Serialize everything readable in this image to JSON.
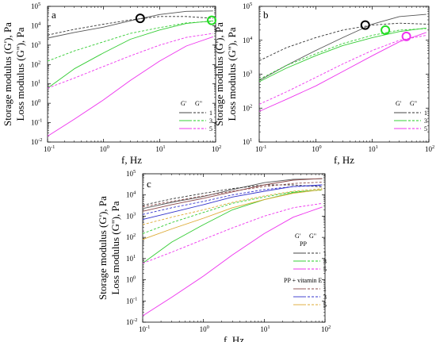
{
  "chart_data": [
    {
      "type": "line",
      "panel": "a",
      "xlabel": "f, Hz",
      "ylabel_lines": [
        "Storage modulus (G'), Pa",
        "Loss modulus (G''), Pa"
      ],
      "x_scale": "log",
      "y_scale": "log",
      "xlim": [
        0.1,
        100
      ],
      "ylim": [
        0.01,
        100000
      ],
      "x_ticks": [
        {
          "v": 0.1,
          "label": "10",
          "exp": "-1"
        },
        {
          "v": 1,
          "label": "10",
          "exp": "0"
        },
        {
          "v": 10,
          "label": "10",
          "exp": "1"
        },
        {
          "v": 100,
          "label": "10",
          "exp": "2"
        }
      ],
      "y_ticks": [
        {
          "v": 0.01,
          "label": "10",
          "exp": "-2"
        },
        {
          "v": 0.1,
          "label": "10",
          "exp": "-1"
        },
        {
          "v": 1,
          "label": "10",
          "exp": "0"
        },
        {
          "v": 10,
          "label": "10",
          "exp": "1"
        },
        {
          "v": 100,
          "label": "10",
          "exp": "2"
        },
        {
          "v": 1000,
          "label": "10",
          "exp": "3"
        },
        {
          "v": 10000,
          "label": "10",
          "exp": "4"
        },
        {
          "v": 100000,
          "label": "10",
          "exp": "5"
        }
      ],
      "legend": {
        "header": [
          "G'",
          "G\""
        ],
        "rows": [
          {
            "label": "1",
            "color": "#333333"
          },
          {
            "label": "3",
            "color": "#22cc22"
          },
          {
            "label": "5",
            "color": "#ee22ee"
          }
        ]
      },
      "series": [
        {
          "color": "#555555",
          "dash": false,
          "x": [
            0.1,
            0.3,
            1,
            3,
            10,
            30,
            90
          ],
          "y": [
            2300,
            4500,
            8500,
            18000,
            38000,
            55000,
            58000
          ]
        },
        {
          "color": "#333333",
          "dash": true,
          "x": [
            0.1,
            0.3,
            1,
            3,
            10,
            30,
            90
          ],
          "y": [
            3300,
            6500,
            12000,
            20000,
            30000,
            30000,
            24000
          ]
        },
        {
          "color": "#33cc33",
          "dash": false,
          "x": [
            0.1,
            0.3,
            1,
            3,
            10,
            30,
            90
          ],
          "y": [
            6,
            60,
            400,
            2000,
            6000,
            13000,
            18000
          ]
        },
        {
          "color": "#33cc33",
          "dash": true,
          "x": [
            0.1,
            0.3,
            1,
            3,
            10,
            30,
            90
          ],
          "y": [
            150,
            500,
            1500,
            4000,
            8000,
            14000,
            17000
          ]
        },
        {
          "color": "#ee33ee",
          "dash": false,
          "x": [
            0.1,
            0.3,
            1,
            3,
            10,
            30,
            90
          ],
          "y": [
            0.02,
            0.15,
            1.5,
            15,
            150,
            900,
            2700
          ]
        },
        {
          "color": "#ee33ee",
          "dash": true,
          "x": [
            0.1,
            0.3,
            1,
            3,
            10,
            30,
            90
          ],
          "y": [
            6,
            20,
            80,
            280,
            1000,
            2500,
            4000
          ]
        }
      ],
      "markers": [
        {
          "x": 4.5,
          "y": 24000,
          "color": "#000000"
        },
        {
          "x": 85,
          "y": 19000,
          "color": "#22dd22"
        }
      ]
    },
    {
      "type": "line",
      "panel": "b",
      "xlabel": "f, Hz",
      "ylabel_lines": [
        "Storage modulus (G'), Pa",
        "Loss modulus (G''), Pa"
      ],
      "x_scale": "log",
      "y_scale": "log",
      "xlim": [
        0.1,
        100
      ],
      "ylim": [
        10,
        100000
      ],
      "x_ticks": [
        {
          "v": 0.1,
          "label": "10",
          "exp": "-1"
        },
        {
          "v": 1,
          "label": "10",
          "exp": "0"
        },
        {
          "v": 10,
          "label": "10",
          "exp": "1"
        },
        {
          "v": 100,
          "label": "10",
          "exp": "2"
        }
      ],
      "y_ticks": [
        {
          "v": 10,
          "label": "10",
          "exp": "1"
        },
        {
          "v": 100,
          "label": "10",
          "exp": "2"
        },
        {
          "v": 1000,
          "label": "10",
          "exp": "3"
        },
        {
          "v": 10000,
          "label": "10",
          "exp": "4"
        },
        {
          "v": 100000,
          "label": "10",
          "exp": "5"
        }
      ],
      "legend": {
        "header": [
          "G'",
          "G\""
        ],
        "rows": [
          {
            "label": "1",
            "color": "#333333"
          },
          {
            "label": "3",
            "color": "#22cc22"
          },
          {
            "label": "5",
            "color": "#ee22ee"
          }
        ]
      },
      "series": [
        {
          "color": "#555555",
          "dash": false,
          "x": [
            0.1,
            0.3,
            1,
            3,
            10,
            30,
            90
          ],
          "y": [
            650,
            1800,
            5000,
            12000,
            30000,
            50000,
            58000
          ]
        },
        {
          "color": "#333333",
          "dash": true,
          "x": [
            0.1,
            0.3,
            1,
            3,
            10,
            30,
            90
          ],
          "y": [
            2500,
            6000,
            12000,
            20000,
            28000,
            32000,
            30000
          ]
        },
        {
          "color": "#33cc33",
          "dash": false,
          "x": [
            0.1,
            0.3,
            1,
            3,
            10,
            30,
            90
          ],
          "y": [
            600,
            1500,
            3500,
            7000,
            12000,
            18000,
            23000
          ]
        },
        {
          "color": "#33cc33",
          "dash": true,
          "x": [
            0.1,
            0.3,
            1,
            3,
            10,
            30,
            90
          ],
          "y": [
            700,
            1800,
            4000,
            8000,
            14000,
            20000,
            22000
          ]
        },
        {
          "color": "#ee33ee",
          "dash": false,
          "x": [
            0.1,
            0.3,
            1,
            3,
            10,
            30,
            90
          ],
          "y": [
            80,
            180,
            450,
            1200,
            3500,
            9000,
            17000
          ]
        },
        {
          "color": "#ee33ee",
          "dash": true,
          "x": [
            0.1,
            0.3,
            1,
            3,
            10,
            30,
            90
          ],
          "y": [
            130,
            300,
            800,
            2000,
            5000,
            10000,
            14000
          ]
        }
      ],
      "markers": [
        {
          "x": 7.5,
          "y": 28000,
          "color": "#000000"
        },
        {
          "x": 17,
          "y": 20000,
          "color": "#22dd22"
        },
        {
          "x": 40,
          "y": 13000,
          "color": "#ee33ee"
        }
      ]
    },
    {
      "type": "line",
      "panel": "c",
      "xlabel": "f, Hz",
      "ylabel_lines": [
        "Storage modulus (G'), Pa",
        "Loss modulus (G''), Pa"
      ],
      "x_scale": "log",
      "y_scale": "log",
      "xlim": [
        0.1,
        100
      ],
      "ylim": [
        0.01,
        100000
      ],
      "x_ticks": [
        {
          "v": 0.1,
          "label": "10",
          "exp": "-1"
        },
        {
          "v": 1,
          "label": "10",
          "exp": "0"
        },
        {
          "v": 10,
          "label": "10",
          "exp": "1"
        },
        {
          "v": 100,
          "label": "10",
          "exp": "2"
        }
      ],
      "y_ticks": [
        {
          "v": 0.01,
          "label": "10",
          "exp": "-2"
        },
        {
          "v": 0.1,
          "label": "10",
          "exp": "-1"
        },
        {
          "v": 1,
          "label": "10",
          "exp": "0"
        },
        {
          "v": 10,
          "label": "10",
          "exp": "1"
        },
        {
          "v": 100,
          "label": "10",
          "exp": "2"
        },
        {
          "v": 1000,
          "label": "10",
          "exp": "3"
        },
        {
          "v": 10000,
          "label": "10",
          "exp": "4"
        },
        {
          "v": 100000,
          "label": "10",
          "exp": "5"
        }
      ],
      "legend": {
        "header": [
          "G'",
          "G\""
        ],
        "group1": "PP",
        "rows1": [
          {
            "label": "1",
            "color": "#333333"
          },
          {
            "label": "3",
            "color": "#22cc22"
          },
          {
            "label": "5",
            "color": "#ee22ee"
          }
        ],
        "group2": "PP + vitamin E",
        "rows2": [
          {
            "label": "1",
            "color": "#8b4a4a"
          },
          {
            "label": "3",
            "color": "#3333cc"
          },
          {
            "label": "5",
            "color": "#ddaa33"
          }
        ]
      },
      "series": [
        {
          "color": "#555555",
          "dash": false,
          "x": [
            0.1,
            0.3,
            1,
            3,
            10,
            30,
            90
          ],
          "y": [
            2300,
            4500,
            8500,
            18000,
            38000,
            55000,
            58000
          ]
        },
        {
          "color": "#333333",
          "dash": true,
          "x": [
            0.1,
            0.3,
            1,
            3,
            10,
            30,
            90
          ],
          "y": [
            3300,
            6500,
            12000,
            20000,
            30000,
            30000,
            24000
          ]
        },
        {
          "color": "#33cc33",
          "dash": false,
          "x": [
            0.1,
            0.3,
            1,
            3,
            10,
            30,
            90
          ],
          "y": [
            6,
            60,
            400,
            2000,
            6000,
            13000,
            18000
          ]
        },
        {
          "color": "#33cc33",
          "dash": true,
          "x": [
            0.1,
            0.3,
            1,
            3,
            10,
            30,
            90
          ],
          "y": [
            150,
            500,
            1500,
            4000,
            8000,
            14000,
            17000
          ]
        },
        {
          "color": "#ee33ee",
          "dash": false,
          "x": [
            0.1,
            0.3,
            1,
            3,
            10,
            30,
            90
          ],
          "y": [
            0.02,
            0.15,
            1.5,
            15,
            150,
            900,
            2700
          ]
        },
        {
          "color": "#ee33ee",
          "dash": true,
          "x": [
            0.1,
            0.3,
            1,
            3,
            10,
            30,
            90
          ],
          "y": [
            6,
            20,
            80,
            280,
            1000,
            2500,
            4000
          ]
        },
        {
          "color": "#8b4a4a",
          "dash": false,
          "x": [
            0.1,
            0.3,
            1,
            3,
            10,
            30,
            90
          ],
          "y": [
            1700,
            3500,
            7000,
            14000,
            30000,
            50000,
            60000
          ]
        },
        {
          "color": "#8b4a4a",
          "dash": true,
          "x": [
            0.1,
            0.3,
            1,
            3,
            10,
            30,
            90
          ],
          "y": [
            2800,
            5000,
            9000,
            15000,
            25000,
            35000,
            40000
          ]
        },
        {
          "color": "#3333cc",
          "dash": false,
          "x": [
            0.1,
            0.3,
            1,
            3,
            10,
            30,
            90
          ],
          "y": [
            700,
            1500,
            3500,
            8000,
            15000,
            25000,
            30000
          ]
        },
        {
          "color": "#3333cc",
          "dash": true,
          "x": [
            0.1,
            0.3,
            1,
            3,
            10,
            30,
            90
          ],
          "y": [
            1200,
            2500,
            5000,
            10000,
            18000,
            25000,
            28000
          ]
        },
        {
          "color": "#ddaa33",
          "dash": false,
          "x": [
            0.1,
            0.3,
            1,
            3,
            10,
            30,
            90
          ],
          "y": [
            80,
            250,
            800,
            2500,
            6000,
            12000,
            18000
          ]
        },
        {
          "color": "#ddaa33",
          "dash": true,
          "x": [
            0.1,
            0.3,
            1,
            3,
            10,
            30,
            90
          ],
          "y": [
            400,
            900,
            2000,
            4500,
            9000,
            15000,
            20000
          ]
        }
      ],
      "markers": []
    }
  ]
}
